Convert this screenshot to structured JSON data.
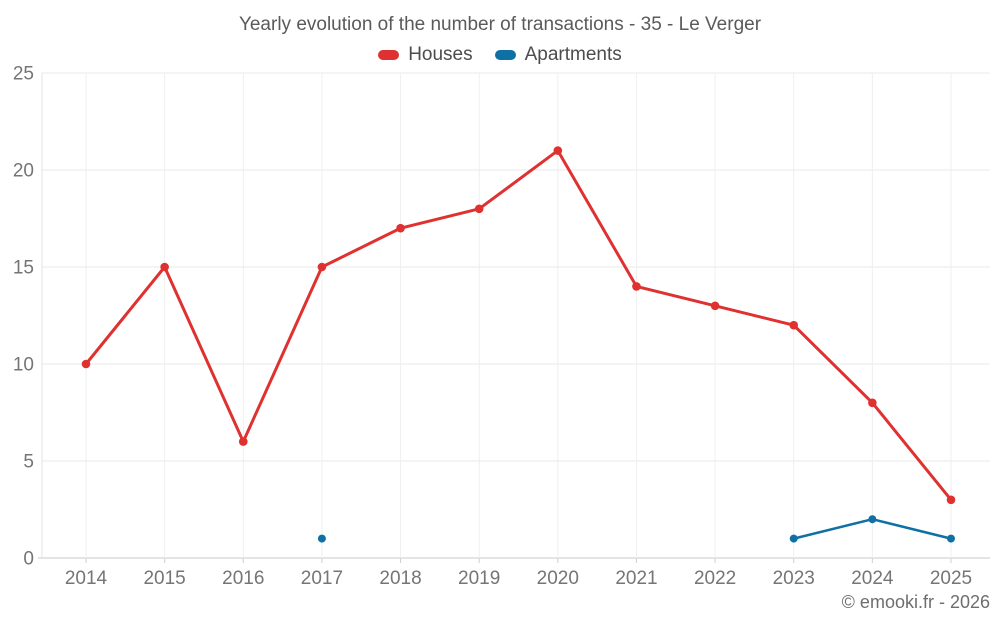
{
  "chart_data": {
    "type": "line",
    "title": "Yearly evolution of the number of transactions - 35 - Le Verger",
    "categories": [
      "2014",
      "2015",
      "2016",
      "2017",
      "2018",
      "2019",
      "2020",
      "2021",
      "2022",
      "2023",
      "2024",
      "2025"
    ],
    "series": [
      {
        "name": "Houses",
        "color": "#e03131",
        "values": [
          10,
          15,
          6,
          15,
          17,
          18,
          21,
          14,
          13,
          12,
          8,
          3
        ]
      },
      {
        "name": "Apartments",
        "color": "#0e70a4",
        "values": [
          null,
          null,
          null,
          1,
          null,
          null,
          null,
          null,
          null,
          1,
          2,
          1
        ]
      }
    ],
    "xlabel": "",
    "ylabel": "",
    "ylim": [
      0,
      25
    ],
    "y_ticks": [
      0,
      5,
      10,
      15,
      20,
      25
    ],
    "grid": true,
    "legend_position": "top"
  },
  "footer": {
    "copyright": "© emooki.fr - 2026"
  }
}
